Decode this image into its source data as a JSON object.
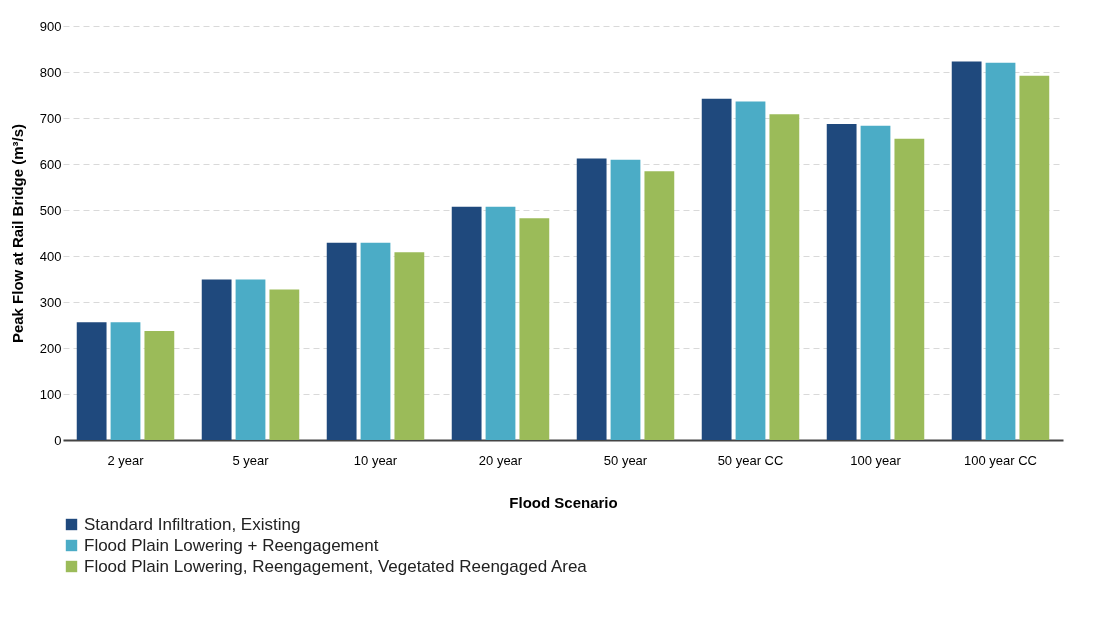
{
  "chart_data": {
    "type": "bar",
    "xlabel": "Flood Scenario",
    "ylabel": "Peak Flow at Rail Bridge (m³/s)",
    "categories": [
      "2 year",
      "5 year",
      "10 year",
      "20 year",
      "50 year",
      "50 year CC",
      "100 year",
      "100 year CC"
    ],
    "series": [
      {
        "name": "Standard Infiltration, Existing",
        "color": "#1f497d",
        "values": [
          256,
          349,
          429,
          507,
          612,
          742,
          687,
          823
        ]
      },
      {
        "name": "Flood Plain Lowering + Reengagement",
        "color": "#4bacc6",
        "values": [
          256,
          349,
          429,
          507,
          609,
          736,
          683,
          820
        ]
      },
      {
        "name": "Flood Plain Lowering, Reengagement, Vegetated Reengaged Area",
        "color": "#9bbb59",
        "values": [
          237,
          327,
          408,
          482,
          584,
          708,
          655,
          792
        ]
      }
    ],
    "ylim": [
      0,
      900
    ],
    "yticks": [
      0,
      100,
      200,
      300,
      400,
      500,
      600,
      700,
      800,
      900
    ],
    "grid": "y",
    "legend": "bottom"
  }
}
